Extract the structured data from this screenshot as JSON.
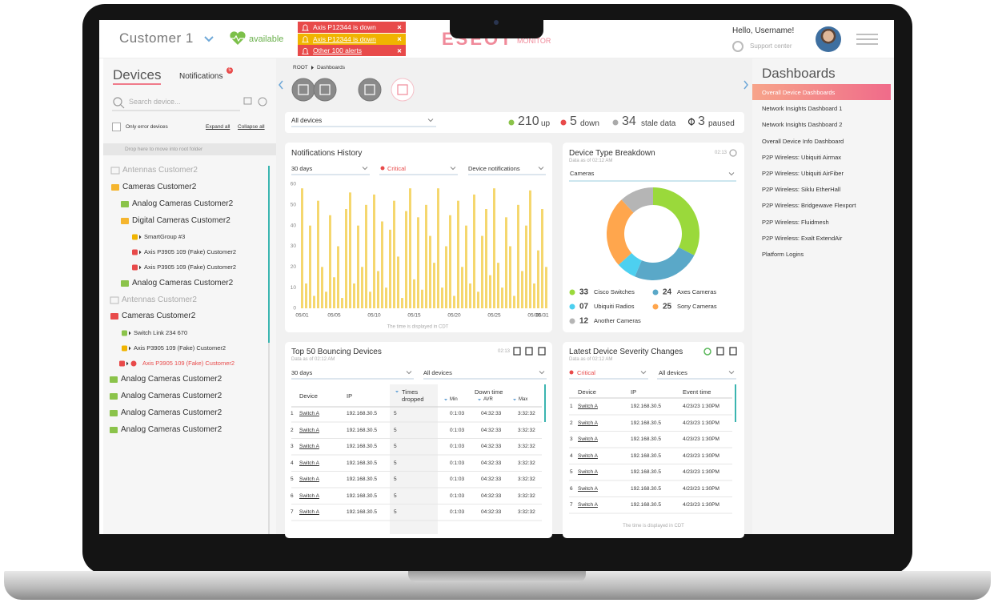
{
  "header": {
    "customer": "Customer 1",
    "status": "available",
    "alerts": [
      "Axis P12344 is down",
      "Axis P12344 is down",
      "Other 100 alerts"
    ],
    "logo": "ESEOT",
    "logo_sub": "MONITOR",
    "greeting": "Hello, Username!",
    "support": "Support center"
  },
  "devices_panel": {
    "tabs": [
      "Devices",
      "Notifications"
    ],
    "notification_count": 5,
    "search_placeholder": "Search device...",
    "only_errors": "Only error devices",
    "expand": "Expand all",
    "collapse": "Collapse all",
    "drop_hint": "Drop here to move into root folder",
    "tree": [
      "Antennas Customer2",
      "Cameras Customer2",
      "Analog Cameras Customer2",
      "Digital Cameras Customer2",
      "SmartGroup #3",
      "Axis P3905 109 (Fake) Customer2",
      "Axis P3905 109 (Fake) Customer2",
      "Analog Cameras Customer2",
      "Antennas Customer2",
      "Cameras Customer2",
      "Switch Link 234 670",
      "Axis P3905 109 (Fake) Customer2",
      "Axis P3905 109 (Fake) Customer2",
      "Analog Cameras Customer2",
      "Analog Cameras Customer2",
      "Analog Cameras Customer2",
      "Analog Cameras Customer2"
    ]
  },
  "breadcrumb": [
    "ROOT",
    "Dashboards"
  ],
  "filter": {
    "scope": "All devices",
    "up": 210,
    "up_label": "up",
    "down": 5,
    "down_label": "down",
    "stale": 34,
    "stale_label": "stale data",
    "paused": 3,
    "paused_label": "paused"
  },
  "notifications_history": {
    "filters": [
      "30 days",
      "Critical",
      "Device notifications"
    ]
  },
  "device_type": {
    "time": "02:13",
    "data_as_of": "Data as of 02:12 AM",
    "filter": "Cameras"
  },
  "bouncing": {
    "title": "Top 50 Bouncing Devices",
    "time": "02:13",
    "data_as_of": "Data as of 02:12 AM",
    "filters": [
      "30 days",
      "All devices"
    ],
    "headers": [
      "Device",
      "IP",
      "Times dropped",
      "Down time",
      "Min",
      "AVR",
      "Max"
    ],
    "rows": [
      [
        "1",
        "Switch A",
        "192.168.30.5",
        "5",
        "0:1:03",
        "04:32:33",
        "3:32:32"
      ],
      [
        "2",
        "Switch A",
        "192.168.30.5",
        "5",
        "0:1:03",
        "04:32:33",
        "3:32:32"
      ],
      [
        "3",
        "Switch A",
        "192.168.30.5",
        "5",
        "0:1:03",
        "04:32:33",
        "3:32:32"
      ],
      [
        "4",
        "Switch A",
        "192.168.30.5",
        "5",
        "0:1:03",
        "04:32:33",
        "3:32:32"
      ],
      [
        "5",
        "Switch A",
        "192.168.30.5",
        "5",
        "0:1:03",
        "04:32:33",
        "3:32:32"
      ],
      [
        "6",
        "Switch A",
        "192.168.30.5",
        "5",
        "0:1:03",
        "04:32:33",
        "3:32:32"
      ],
      [
        "7",
        "Switch A",
        "192.168.30.5",
        "5",
        "0:1:03",
        "04:32:33",
        "3:32:32"
      ]
    ]
  },
  "severity": {
    "title": "Latest Device Severity Changes",
    "data_as_of": "Data as of 02:12 AM",
    "filters": [
      "Critical",
      "All devices"
    ],
    "headers": [
      "Device",
      "IP",
      "Event time"
    ],
    "rows": [
      [
        "1",
        "Switch A",
        "192.168.30.5",
        "4/23/23 1:30PM"
      ],
      [
        "2",
        "Switch A",
        "192.168.30.5",
        "4/23/23 1:30PM"
      ],
      [
        "3",
        "Switch A",
        "192.168.30.5",
        "4/23/23 1:30PM"
      ],
      [
        "4",
        "Switch A",
        "192.168.30.5",
        "4/23/23 1:30PM"
      ],
      [
        "5",
        "Switch A",
        "192.168.30.5",
        "4/23/23 1:30PM"
      ],
      [
        "6",
        "Switch A",
        "192.168.30.5",
        "4/23/23 1:30PM"
      ],
      [
        "7",
        "Switch A",
        "192.168.30.5",
        "4/23/23 1:30PM"
      ]
    ],
    "footnote": "The time is displayed in CDT"
  },
  "dashboards": {
    "title": "Dashboards",
    "items": [
      "Overall Device Dashboards",
      "Network Insights Dashboard 1",
      "Network Insights Dashboard 2",
      "Overall Device Info Dashboard",
      "P2P Wireless: Ubiquiti Airmax",
      "P2P Wireless: Ubiquiti AirFiber",
      "P2P Wireless: Siklu EtherHall",
      "P2P Wireless: Bridgewave Flexport",
      "P2P Wireless: Fluidmesh",
      "P2P Wireless: Exalt ExtendAir",
      "Platform Logins"
    ]
  },
  "chart_data": [
    {
      "type": "bar",
      "title": "Notifications History",
      "color": "#f5d76e",
      "categories": [
        "05/01",
        null,
        null,
        null,
        null,
        null,
        null,
        null,
        "05/05",
        null,
        null,
        null,
        null,
        null,
        null,
        null,
        null,
        null,
        "05/10",
        null,
        null,
        null,
        null,
        null,
        null,
        null,
        null,
        null,
        "05/15",
        null,
        null,
        null,
        null,
        null,
        null,
        null,
        null,
        null,
        "05/20",
        null,
        null,
        null,
        null,
        null,
        null,
        null,
        null,
        null,
        "05/25",
        null,
        null,
        null,
        null,
        null,
        null,
        null,
        null,
        null,
        "05/30",
        null,
        "05/31",
        null
      ],
      "values": [
        58,
        12,
        40,
        6,
        52,
        20,
        8,
        45,
        15,
        30,
        5,
        48,
        56,
        12,
        40,
        20,
        50,
        8,
        55,
        18,
        42,
        10,
        38,
        52,
        25,
        5,
        47,
        58,
        14,
        44,
        9,
        50,
        35,
        22,
        58,
        10,
        30,
        45,
        6,
        52,
        20,
        40,
        12,
        55,
        8,
        35,
        48,
        16,
        58,
        22,
        10,
        44,
        30,
        6,
        50,
        18,
        40,
        57,
        12,
        28,
        48,
        20
      ],
      "ylim": [
        0,
        60
      ],
      "yticks": [
        0,
        10,
        20,
        30,
        40,
        50,
        60
      ],
      "grid": false,
      "footnote": "The time is displayed in CDT"
    },
    {
      "type": "pie",
      "title": "Device Type Breakdown",
      "donut": true,
      "categories": [
        "Cisco Switches",
        "Axes Cameras",
        "Ubiquiti Radios",
        "Sony Cameras",
        "Another Cameras"
      ],
      "values": [
        33,
        24,
        7,
        25,
        12
      ],
      "value_labels": [
        "33",
        "24",
        "07",
        "25",
        "12"
      ],
      "colors": [
        "#9ad93b",
        "#5aa8c8",
        "#4dd0f0",
        "#ffa64d",
        "#b5b5b5"
      ]
    }
  ]
}
